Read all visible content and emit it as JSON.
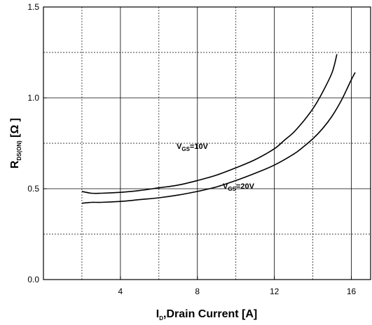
{
  "chart_data": {
    "type": "line",
    "xlabel": {
      "main": "I",
      "sub": "D",
      "rest": ",Drain Current [A]"
    },
    "ylabel": {
      "main": "R",
      "sub": "DS(ON)",
      "rest": " [Ω ]"
    },
    "xlim": [
      0,
      17
    ],
    "ylim": [
      0,
      1.5
    ],
    "x_ticks": [
      4,
      8,
      12,
      16
    ],
    "y_ticks": [
      0.0,
      0.5,
      1.0,
      1.5
    ],
    "y_tick_labels": [
      "0.0",
      "0.5",
      "1.0",
      "1.5"
    ],
    "grid": {
      "solid_x": [
        4,
        8,
        12,
        16
      ],
      "dashed_x": [
        2,
        6,
        10,
        14
      ],
      "solid_y": [
        0.5,
        1.0
      ],
      "dashed_y": [
        0.25,
        0.75,
        1.25
      ]
    },
    "series": [
      {
        "name": "VGS=10V",
        "label": {
          "main": "V",
          "sub": "GS",
          "rest": "=10V"
        },
        "x": [
          2.0,
          2.5,
          3.0,
          4.0,
          5.0,
          6.0,
          7.0,
          8.0,
          9.0,
          10.0,
          11.0,
          12.0,
          12.5,
          13.0,
          13.5,
          14.0,
          14.5,
          15.0,
          15.25
        ],
        "y": [
          0.485,
          0.475,
          0.475,
          0.48,
          0.49,
          0.505,
          0.52,
          0.545,
          0.575,
          0.615,
          0.66,
          0.72,
          0.765,
          0.81,
          0.87,
          0.94,
          1.03,
          1.14,
          1.24
        ]
      },
      {
        "name": "VGS=20V",
        "label": {
          "main": "V",
          "sub": "GS",
          "rest": "=20V"
        },
        "x": [
          2.0,
          2.5,
          3.0,
          4.0,
          5.0,
          6.0,
          7.0,
          8.0,
          9.0,
          10.0,
          11.0,
          12.0,
          13.0,
          13.5,
          14.0,
          14.5,
          15.0,
          15.5,
          16.0,
          16.2
        ],
        "y": [
          0.42,
          0.425,
          0.425,
          0.43,
          0.44,
          0.45,
          0.465,
          0.485,
          0.51,
          0.545,
          0.585,
          0.63,
          0.69,
          0.73,
          0.775,
          0.83,
          0.9,
          0.99,
          1.1,
          1.14
        ]
      }
    ]
  }
}
